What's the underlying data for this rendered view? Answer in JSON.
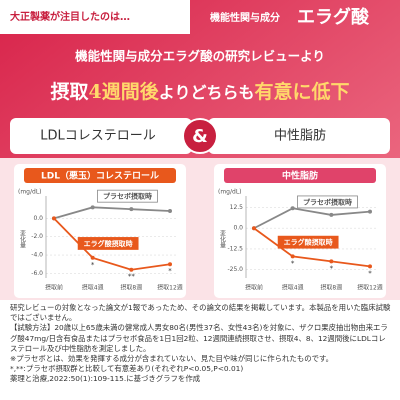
{
  "banner": {
    "pill": "大正製薬が注目したのは…",
    "label": "機能性関与成分",
    "name": "エラグ酸"
  },
  "subtitle": "機能性関与成分エラグ酸の研究レビューより",
  "headline": [
    "摂取",
    "4週間後",
    "よりどちらも",
    "有意に低下"
  ],
  "compare": {
    "left": "LDLコレステロール",
    "amp": "&",
    "right": "中性脂肪"
  },
  "chart_data": [
    {
      "type": "line",
      "title": "LDL（悪玉）コレステロール",
      "y_unit": "(mg/dL)",
      "y_label": "変化量",
      "color": "#e8581c",
      "categories": [
        "摂取前",
        "摂取4週",
        "摂取8週",
        "摂取12週"
      ],
      "series": [
        {
          "name": "プラセボ摂取時",
          "color": "#888888",
          "values": [
            0,
            1.2,
            1.0,
            0.8
          ]
        },
        {
          "name": "エラグ酸摂取時",
          "color": "#e8581c",
          "values": [
            0,
            -4.3,
            -5.6,
            -5.0
          ]
        }
      ],
      "significance": [
        null,
        "*",
        "**",
        "*"
      ],
      "ylim": [
        -6.5,
        2.0
      ],
      "yticks": [
        {
          "value": 0,
          "label": "0.0"
        },
        {
          "value": -2,
          "label": "-2.0"
        },
        {
          "value": -4,
          "label": "-4.0"
        },
        {
          "value": -6,
          "label": "-6.0"
        }
      ]
    },
    {
      "type": "line",
      "title": "中性脂肪",
      "y_unit": "(mg/dL)",
      "y_label": "変化量",
      "color": "#e0436a",
      "categories": [
        "摂取前",
        "摂取4週",
        "摂取8週",
        "摂取12週"
      ],
      "series": [
        {
          "name": "プラセボ摂取時",
          "color": "#888888",
          "values": [
            0,
            12,
            8,
            10
          ]
        },
        {
          "name": "エラグ酸摂取時",
          "color": "#e8581c",
          "values": [
            0,
            -17,
            -20,
            -23
          ]
        }
      ],
      "significance": [
        null,
        "*",
        "*",
        "*"
      ],
      "ylim": [
        -30,
        17
      ],
      "yticks": [
        {
          "value": 12.5,
          "label": "12.5"
        },
        {
          "value": 0,
          "label": "0.0"
        },
        {
          "value": -12.5,
          "label": "-12.5"
        },
        {
          "value": -25,
          "label": "-25.0"
        }
      ]
    }
  ],
  "notes": [
    "研究レビューの対象となった論文が1報であったため、その論文の結果を掲載しています。本製品を用いた臨床試験ではございません。",
    "【試験方法】20歳以上65歳未満の健常成人男女80名(男性37名、女性43名)を対象に、ザクロ果皮抽出物由来エラグ酸47mg/日含有食品またはプラセボ食品を1日1回2粒、12週間連続摂取させ、摂取4、8、12週間後にLDLコレステロール及び中性脂肪を測定しました。",
    "※プラセボとは、効果を発揮する成分が含まれていない、見た目や味が同じに作られたものです。",
    "*,**:プラセボ摂取群と比較して有意差あり(それぞれP<0.05,P<0.01)",
    "薬理と治療,2022:50(1):109-115.に基づきグラフを作成"
  ]
}
